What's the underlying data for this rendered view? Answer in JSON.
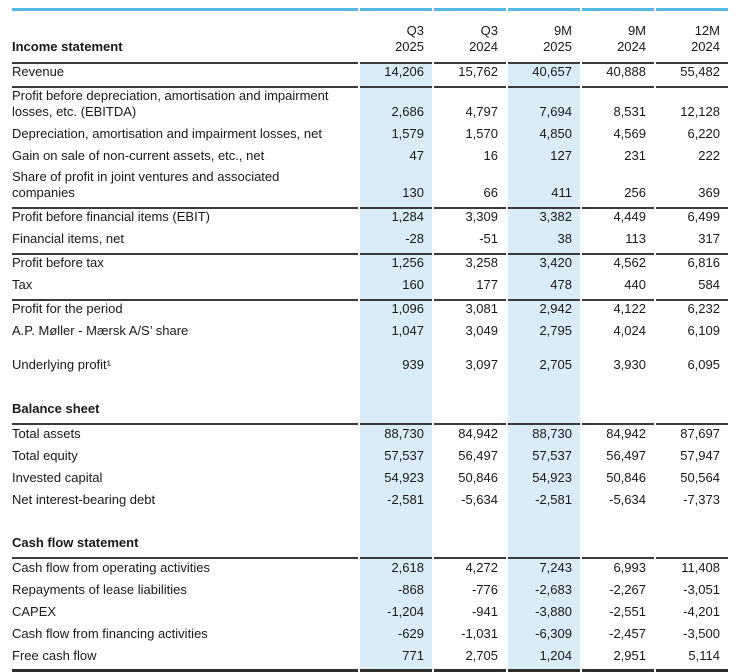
{
  "document": {
    "kind": "financial-summary-table",
    "units_note": ""
  },
  "colors": {
    "accent_blue_top_border": "#55b8e2",
    "column_highlight": "#d9ecf8",
    "rule_line": "#3b3b3b",
    "text": "#191919"
  },
  "table": {
    "highlight_columns": [
      0,
      2
    ],
    "header": {
      "title": "Income statement",
      "columns": [
        {
          "line1": "Q3",
          "line2": "2025"
        },
        {
          "line1": "Q3",
          "line2": "2024"
        },
        {
          "line1": "9M",
          "line2": "2025"
        },
        {
          "line1": "9M",
          "line2": "2024"
        },
        {
          "line1": "12M",
          "line2": "2024"
        }
      ]
    },
    "body": [
      {
        "type": "data",
        "label": "Revenue",
        "values": [
          "14,206",
          "15,762",
          "40,657",
          "40,888",
          "55,482"
        ],
        "rule": true
      },
      {
        "type": "data",
        "label": "Profit before depreciation, amortisation and impairment losses, etc. (EBITDA)",
        "values": [
          "2,686",
          "4,797",
          "7,694",
          "8,531",
          "12,128"
        ]
      },
      {
        "type": "data",
        "label": "Depreciation, amortisation and impairment losses, net",
        "values": [
          "1,579",
          "1,570",
          "4,850",
          "4,569",
          "6,220"
        ]
      },
      {
        "type": "data",
        "label": "Gain on sale of non-current assets, etc., net",
        "values": [
          "47",
          "16",
          "127",
          "231",
          "222"
        ]
      },
      {
        "type": "data",
        "label": "Share of profit in joint ventures and associated companies",
        "values": [
          "130",
          "66",
          "411",
          "256",
          "369"
        ],
        "rule": true
      },
      {
        "type": "data",
        "label": "Profit before financial items (EBIT)",
        "values": [
          "1,284",
          "3,309",
          "3,382",
          "4,449",
          "6,499"
        ]
      },
      {
        "type": "data",
        "label": "Financial items, net",
        "values": [
          "-28",
          "-51",
          "38",
          "113",
          "317"
        ],
        "rule": true
      },
      {
        "type": "data",
        "label": "Profit before tax",
        "values": [
          "1,256",
          "3,258",
          "3,420",
          "4,562",
          "6,816"
        ]
      },
      {
        "type": "data",
        "label": "Tax",
        "values": [
          "160",
          "177",
          "478",
          "440",
          "584"
        ],
        "rule": true
      },
      {
        "type": "data",
        "label": "Profit for the period",
        "values": [
          "1,096",
          "3,081",
          "2,942",
          "4,122",
          "6,232"
        ]
      },
      {
        "type": "data",
        "label": "A.P. Møller - Mærsk A/S’ share",
        "values": [
          "1,047",
          "3,049",
          "2,795",
          "4,024",
          "6,109"
        ]
      },
      {
        "type": "spacer",
        "height": 12
      },
      {
        "type": "data",
        "label": "Underlying profit¹",
        "values": [
          "939",
          "3,097",
          "2,705",
          "3,930",
          "6,095"
        ]
      },
      {
        "type": "spacer",
        "height": 10
      },
      {
        "type": "section",
        "label": "Balance sheet"
      },
      {
        "type": "data",
        "label": "Total assets",
        "values": [
          "88,730",
          "84,942",
          "88,730",
          "84,942",
          "87,697"
        ]
      },
      {
        "type": "data",
        "label": "Total equity",
        "values": [
          "57,537",
          "56,497",
          "57,537",
          "56,497",
          "57,947"
        ]
      },
      {
        "type": "data",
        "label": "Invested capital",
        "values": [
          "54,923",
          "50,846",
          "54,923",
          "50,846",
          "50,564"
        ]
      },
      {
        "type": "data",
        "label": "Net interest-bearing debt",
        "values": [
          "-2,581",
          "-5,634",
          "-2,581",
          "-5,634",
          "-7,373"
        ]
      },
      {
        "type": "spacer",
        "height": 10
      },
      {
        "type": "section",
        "label": "Cash flow statement"
      },
      {
        "type": "data",
        "label": "Cash flow from operating activities",
        "values": [
          "2,618",
          "4,272",
          "7,243",
          "6,993",
          "11,408"
        ]
      },
      {
        "type": "data",
        "label": "Repayments of lease liabilities",
        "values": [
          "-868",
          "-776",
          "-2,683",
          "-2,267",
          "-3,051"
        ]
      },
      {
        "type": "data",
        "label": "CAPEX",
        "values": [
          "-1,204",
          "-941",
          "-3,880",
          "-2,551",
          "-4,201"
        ]
      },
      {
        "type": "data",
        "label": "Cash flow from financing activities",
        "values": [
          "-629",
          "-1,031",
          "-6,309",
          "-2,457",
          "-3,500"
        ]
      },
      {
        "type": "data",
        "label": "Free cash flow",
        "values": [
          "771",
          "2,705",
          "1,204",
          "2,951",
          "5,114"
        ],
        "rule": "thick"
      }
    ]
  }
}
